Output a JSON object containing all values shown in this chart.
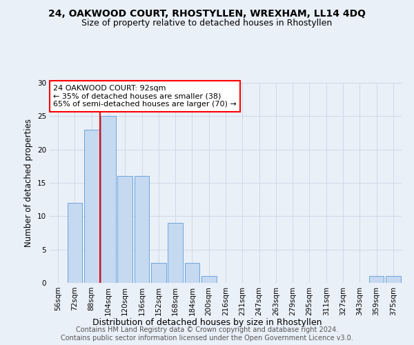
{
  "title": "24, OAKWOOD COURT, RHOSTYLLEN, WREXHAM, LL14 4DQ",
  "subtitle": "Size of property relative to detached houses in Rhostyllen",
  "xlabel": "Distribution of detached houses by size in Rhostyllen",
  "ylabel": "Number of detached properties",
  "categories": [
    "56sqm",
    "72sqm",
    "88sqm",
    "104sqm",
    "120sqm",
    "136sqm",
    "152sqm",
    "168sqm",
    "184sqm",
    "200sqm",
    "216sqm",
    "231sqm",
    "247sqm",
    "263sqm",
    "279sqm",
    "295sqm",
    "311sqm",
    "327sqm",
    "343sqm",
    "359sqm",
    "375sqm"
  ],
  "values": [
    0,
    12,
    23,
    25,
    16,
    16,
    3,
    9,
    3,
    1,
    0,
    0,
    0,
    0,
    0,
    0,
    0,
    0,
    0,
    1,
    1
  ],
  "bar_color": "#c5d9f1",
  "bar_edge_color": "#5b9bd5",
  "annotation_text": "24 OAKWOOD COURT: 92sqm\n← 35% of detached houses are smaller (38)\n65% of semi-detached houses are larger (70) →",
  "annotation_box_color": "white",
  "annotation_box_edge_color": "red",
  "vline_color": "red",
  "vline_x": 2.5,
  "ylim": [
    0,
    30
  ],
  "yticks": [
    0,
    5,
    10,
    15,
    20,
    25,
    30
  ],
  "grid_color": "#d0d8e8",
  "bg_color": "#eaf0f8",
  "title_fontsize": 10,
  "subtitle_fontsize": 9,
  "xlabel_fontsize": 9,
  "ylabel_fontsize": 8.5,
  "tick_fontsize": 7.5,
  "annotation_fontsize": 8,
  "footer_text": "Contains HM Land Registry data © Crown copyright and database right 2024.\nContains public sector information licensed under the Open Government Licence v3.0.",
  "footer_fontsize": 7
}
